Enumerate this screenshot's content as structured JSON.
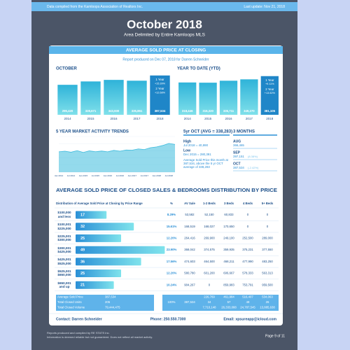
{
  "header": {
    "source": "Data compiled from the Kamloops Association of Realtors Inc.",
    "last_update": "Last update: Nov 21, 2018",
    "title": "October 2018",
    "subtitle": "Area Delimited by Entire Kamloops MLS"
  },
  "card": {
    "heading": "AVERAGE SOLD PRICE AT CLOSING",
    "report_line": "Report produced on Dec 07, 2018 for Darren Schneider"
  },
  "chart_data": [
    {
      "type": "bar",
      "title": "OCTOBER",
      "categories": [
        "2014",
        "2015",
        "2016",
        "2017",
        "2018"
      ],
      "values": [
        295420,
        328671,
        343930,
        335861,
        387534
      ],
      "value_labels": [
        "295,420",
        "328,671",
        "343,930",
        "335,861",
        "387,534"
      ],
      "color": "#3cbbdd",
      "highlight_color": "#1f86c8",
      "ylim": [
        0,
        400000
      ],
      "notes": [
        "1 Year",
        "+15.39%",
        "2 Year",
        "+12.68%"
      ]
    },
    {
      "type": "bar",
      "title": "YEAR TO DATE (YTD)",
      "categories": [
        "2014",
        "2015",
        "2016",
        "2017",
        "2018"
      ],
      "values": [
        318446,
        316320,
        335711,
        349270,
        381105
      ],
      "value_labels": [
        "318,446",
        "316,320",
        "335,711",
        "349,270",
        "381,105"
      ],
      "color": "#3cbbdd",
      "highlight_color": "#1f86c8",
      "ylim": [
        0,
        400000
      ],
      "notes": [
        "1 Year",
        "+9.11%",
        "2 Year",
        "+13.52%"
      ]
    },
    {
      "type": "area",
      "title": "5 YEAR MARKET ACTIVITY TRENDS",
      "categories": [
        "Jan 2014",
        null,
        "Jul 2014",
        null,
        "Jan 2015",
        null,
        "Jul 2015",
        null,
        "Jan 2016",
        null,
        "Jul 2016",
        null,
        "Jan 2017",
        null,
        "Jul 2017",
        null,
        "Jan 2018",
        null,
        "Jul 2018",
        null
      ],
      "values": [
        300000,
        306000,
        296000,
        311000,
        294000,
        309000,
        301000,
        307000,
        300000,
        314000,
        306000,
        318000,
        316000,
        328000,
        322000,
        340000,
        348000,
        362000,
        382000,
        372000
      ],
      "color": "#3cbbdd",
      "ylim": [
        100000,
        450000
      ]
    },
    {
      "type": "bar",
      "orientation": "horizontal",
      "title": "AVERAGE SOLD PRICE OF CLOSED SALES & BEDROOMS DISTRIBUTION BY PRICE",
      "axis_label": "Distribution of Average Sold Price at Closing by Price Range",
      "categories": [
        "$100,000\nand less",
        "$100,001\n$225,000",
        "$225,001\n$300,000",
        "$300,001\n$425,000",
        "$425,001\n$525,000",
        "$525,001\n$650,000",
        "$650,001\nand up"
      ],
      "values": [
        17,
        32,
        25,
        49,
        36,
        25,
        21
      ],
      "xlim": [
        0,
        60
      ],
      "color": "#2a9fd6"
    }
  ],
  "market": {
    "avg_heading": "5yr OCT (AVG = 338,283)",
    "high_label": "High",
    "high_value": "Jul 2018 = 40,990",
    "low_label": "Low",
    "low_value": "Dec 2015 = 280,391",
    "summary": "Average Sold Price this month at 387,534, above the 5 yr OCT average of 338,283",
    "months_heading": "3 MONTHS",
    "months": [
      {
        "name": "AUG",
        "value": "366,465"
      },
      {
        "name": "SEP",
        "value": "397,151",
        "change": "(8.38%)"
      },
      {
        "name": "OCT",
        "value": "387,534",
        "change": "(-2.42%)"
      }
    ]
  },
  "table": {
    "columns": [
      "%",
      "AV Sale",
      "1-2 Beds",
      "3 Beds",
      "4 Beds",
      "5+ Beds"
    ],
    "rows": [
      [
        "8.29%",
        "53,582",
        "52,150",
        "60,833",
        "0",
        "0"
      ],
      [
        "15.61%",
        "168,519",
        "168,027",
        "170,650",
        "0",
        "0"
      ],
      [
        "12.20%",
        "264,416",
        "269,900",
        "249,100",
        "252,500",
        "289,000"
      ],
      [
        "23.90%",
        "368,042",
        "374,575",
        "359,935",
        "375,231",
        "377,550"
      ],
      [
        "17.56%",
        "474,603",
        "464,500",
        "468,211",
        "477,990",
        "483,250"
      ],
      [
        "12.20%",
        "580,780",
        "601,200",
        "606,667",
        "578,333",
        "563,313"
      ],
      [
        "10.24%",
        "904,267",
        "0",
        "859,983",
        "753,791",
        "959,500"
      ]
    ],
    "summary_labels": [
      "Average Sold Price",
      "Total Closed Units",
      "Total Closed Volume"
    ],
    "summary_values": [
      "387,534",
      "205",
      "79,444,475"
    ],
    "summary_percent": "100%",
    "summary_av_sale": "387,534",
    "summary_beds": [
      [
        "226,769",
        "461,984",
        "516,407",
        "534,063"
      ],
      [
        "34",
        "57",
        "48",
        "26"
      ],
      [
        "7,710,148",
        "26,333,088",
        "24,787,545",
        "13,885,638"
      ]
    ]
  },
  "footer": {
    "contact": "Contact: Darren Schneider",
    "phone": "Phone: 250.550.7300",
    "email": "Email: xpsureapp@icloud.com",
    "credit": "Reports produced and compiled by RE STATS Inc.",
    "disclaimer": "Information is deemed reliable but not guaranteed. Does not reflect all market activity.",
    "page": "Page 9 of 11"
  }
}
